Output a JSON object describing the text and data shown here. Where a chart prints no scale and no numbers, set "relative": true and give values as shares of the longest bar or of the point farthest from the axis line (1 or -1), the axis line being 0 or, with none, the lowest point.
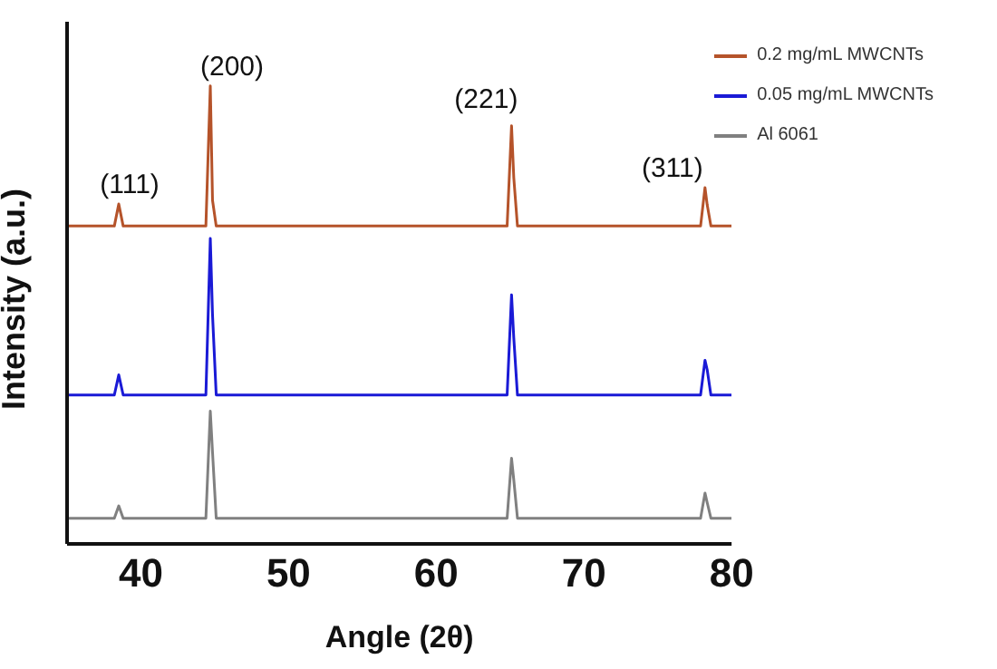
{
  "chart_data": {
    "type": "line",
    "relative": true,
    "xlabel": "Angle (2θ)",
    "ylabel": "Intensity (a.u.)",
    "xlim": [
      35,
      80
    ],
    "xticks": [
      40,
      50,
      60,
      70,
      80
    ],
    "legend": "top right",
    "marker": "none",
    "series": [
      {
        "name": "0.2 mg/mL MWCNTs",
        "color": "#b5532a",
        "x": [
          35,
          38.2,
          38.5,
          38.8,
          44.4,
          44.7,
          44.85,
          45.1,
          64.8,
          65.1,
          65.25,
          65.5,
          77.9,
          78.2,
          78.35,
          78.6,
          80
        ],
        "values": [
          0.694,
          0.694,
          0.742,
          0.694,
          0.694,
          1.0,
          0.75,
          0.694,
          0.694,
          0.913,
          0.8,
          0.694,
          0.694,
          0.778,
          0.74,
          0.694,
          0.694
        ]
      },
      {
        "name": "0.05 mg/mL MWCNTs",
        "color": "#1a1ad6",
        "x": [
          35,
          38.2,
          38.5,
          38.8,
          44.4,
          44.7,
          44.85,
          45.1,
          64.8,
          65.1,
          65.25,
          65.5,
          77.9,
          78.2,
          78.35,
          78.6,
          80
        ],
        "values": [
          0.325,
          0.325,
          0.369,
          0.325,
          0.325,
          0.667,
          0.5,
          0.325,
          0.325,
          0.544,
          0.45,
          0.325,
          0.325,
          0.401,
          0.38,
          0.325,
          0.325
        ]
      },
      {
        "name": "Al 6061",
        "color": "#808080",
        "x": [
          35,
          38.2,
          38.5,
          38.8,
          44.4,
          44.7,
          44.85,
          45.1,
          64.8,
          65.1,
          65.25,
          65.5,
          77.9,
          78.2,
          78.35,
          78.6,
          80
        ],
        "values": [
          0.056,
          0.056,
          0.083,
          0.056,
          0.056,
          0.29,
          0.2,
          0.056,
          0.056,
          0.187,
          0.14,
          0.056,
          0.056,
          0.111,
          0.09,
          0.056,
          0.056
        ]
      }
    ],
    "annotations": [
      {
        "text": "(111)",
        "x": 38.5,
        "y": 0.742
      },
      {
        "text": "(200)",
        "x": 44.7,
        "y": 1.0
      },
      {
        "text": "(221)",
        "x": 65.1,
        "y": 0.913
      },
      {
        "text": "(311)",
        "x": 78.2,
        "y": 0.778
      }
    ]
  }
}
